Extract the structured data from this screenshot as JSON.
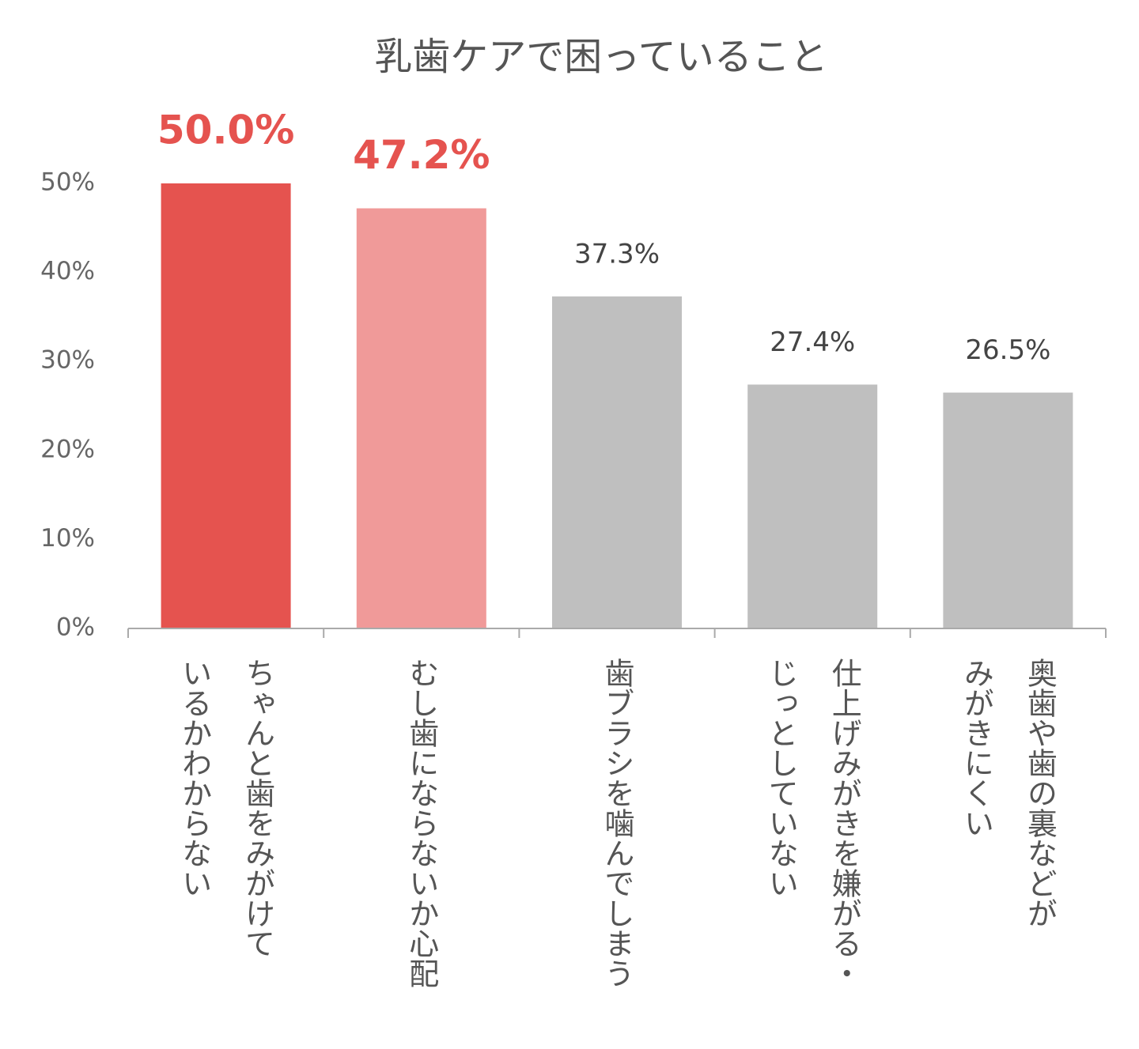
{
  "chart_data": {
    "type": "bar",
    "title": "乳歯ケアで困っていること",
    "categories": [
      [
        "ちゃんと歯をみがけて",
        "いるかわからない"
      ],
      [
        "むし歯にならないか心配"
      ],
      [
        "歯ブラシを噛んでしまう"
      ],
      [
        "仕上げみがきを嫌がる・",
        "じっとしていない"
      ],
      [
        "奥歯や歯の裏などが",
        "みがきにくい"
      ]
    ],
    "values": [
      50.0,
      47.2,
      37.3,
      27.4,
      26.5
    ],
    "value_labels": [
      "50.0%",
      "47.2%",
      "37.3%",
      "27.4%",
      "26.5%"
    ],
    "colors": [
      "#e5534f",
      "#f09a99",
      "#bfbfbf",
      "#bfbfbf",
      "#bfbfbf"
    ],
    "value_label_colors": [
      "#e5534f",
      "#e5534f",
      "#444444",
      "#444444",
      "#444444"
    ],
    "highlight": [
      true,
      true,
      false,
      false,
      false
    ],
    "ylim": [
      0,
      50
    ],
    "yticks": [
      {
        "value": 0,
        "label": "0%"
      },
      {
        "value": 10,
        "label": "10%"
      },
      {
        "value": 20,
        "label": "20%"
      },
      {
        "value": 30,
        "label": "30%"
      },
      {
        "value": 40,
        "label": "40%"
      },
      {
        "value": 50,
        "label": "50%"
      }
    ],
    "grid": false
  }
}
